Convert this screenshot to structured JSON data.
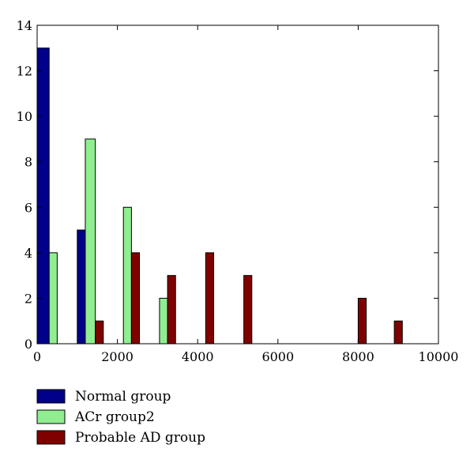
{
  "chart_data": {
    "type": "bar",
    "xlim": [
      0,
      10000
    ],
    "ylim": [
      0,
      14
    ],
    "xticks": [
      0,
      2000,
      4000,
      6000,
      8000,
      10000
    ],
    "yticks": [
      0,
      2,
      4,
      6,
      8,
      10,
      12,
      14
    ],
    "xlabel": "",
    "ylabel": "",
    "title": "",
    "grid": false,
    "legend_position": "bottom-left",
    "series": [
      {
        "name": "Normal group",
        "color": "#00008b",
        "bars": [
          {
            "x0": 0,
            "x1": 300,
            "value": 13
          },
          {
            "x0": 1000,
            "x1": 1200,
            "value": 5
          }
        ]
      },
      {
        "name": "ACr group2",
        "color": "#90ee90",
        "bars": [
          {
            "x0": 300,
            "x1": 500,
            "value": 4
          },
          {
            "x0": 1200,
            "x1": 1450,
            "value": 9
          },
          {
            "x0": 2150,
            "x1": 2350,
            "value": 6
          },
          {
            "x0": 3050,
            "x1": 3250,
            "value": 2
          }
        ]
      },
      {
        "name": "Probable AD group",
        "color": "#800000",
        "bars": [
          {
            "x0": 1450,
            "x1": 1650,
            "value": 1
          },
          {
            "x0": 2350,
            "x1": 2550,
            "value": 4
          },
          {
            "x0": 3250,
            "x1": 3450,
            "value": 3
          },
          {
            "x0": 4200,
            "x1": 4400,
            "value": 4
          },
          {
            "x0": 5150,
            "x1": 5350,
            "value": 3
          },
          {
            "x0": 8000,
            "x1": 8200,
            "value": 2
          },
          {
            "x0": 8900,
            "x1": 9100,
            "value": 1
          }
        ]
      }
    ]
  }
}
